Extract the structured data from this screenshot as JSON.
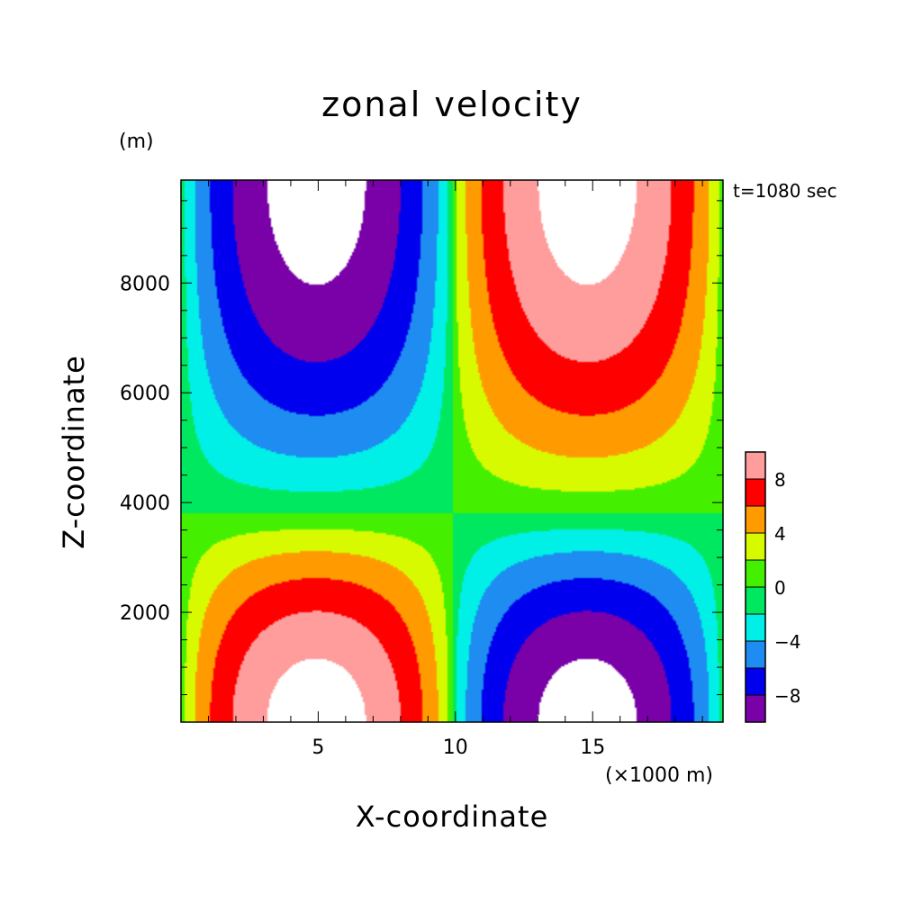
{
  "chart_data": {
    "type": "contour",
    "title": "zonal velocity",
    "xlabel": "X-coordinate",
    "ylabel": "Z-coordinate",
    "x_unit": "(×1000 m)",
    "y_unit": "(m)",
    "annotation": "t=1080 sec",
    "xlim": [
      0,
      19.75
    ],
    "ylim": [
      0,
      9875
    ],
    "x_ticks": [
      5,
      10,
      15
    ],
    "y_ticks": [
      2000,
      4000,
      6000,
      8000
    ],
    "x_tick_labels": [
      "5",
      "10",
      "15"
    ],
    "y_tick_labels": [
      "2000",
      "4000",
      "6000",
      "8000"
    ],
    "colorbar": {
      "levels": [
        -10,
        -8,
        -6,
        -4,
        -2,
        0,
        2,
        4,
        6,
        8,
        10
      ],
      "tick_labels": [
        {
          "value": 8,
          "label": "8"
        },
        {
          "value": 4,
          "label": "4"
        },
        {
          "value": 0,
          "label": "0"
        },
        {
          "value": -4,
          "label": "−4"
        },
        {
          "value": -8,
          "label": "−8"
        }
      ],
      "colors": [
        "#7a00a8",
        "#0000ee",
        "#1e8cf0",
        "#00f0e8",
        "#00e860",
        "#44f000",
        "#d8fa00",
        "#ff9a00",
        "#ff0000",
        "#ff9c9c"
      ]
    },
    "field": {
      "max_abs_value": 11,
      "pattern": "anti-symmetric vortex pair: negative upper-left, positive upper-right, positive lower-left, negative lower-right",
      "lobes": [
        {
          "name": "upper-left",
          "sign": -1,
          "x_center": 5.0,
          "z_top": 9875,
          "z_inner_edge": 6200
        },
        {
          "name": "upper-right",
          "sign": 1,
          "x_center": 15.0,
          "z_top": 9875,
          "z_inner_edge": 6000
        },
        {
          "name": "lower-left",
          "sign": 1,
          "x_center": 5.0,
          "z_bottom": 0,
          "z_inner_edge": 2000
        },
        {
          "name": "lower-right",
          "sign": -1,
          "x_center": 15.0,
          "z_bottom": 0,
          "z_inner_edge": 2300
        }
      ]
    }
  }
}
